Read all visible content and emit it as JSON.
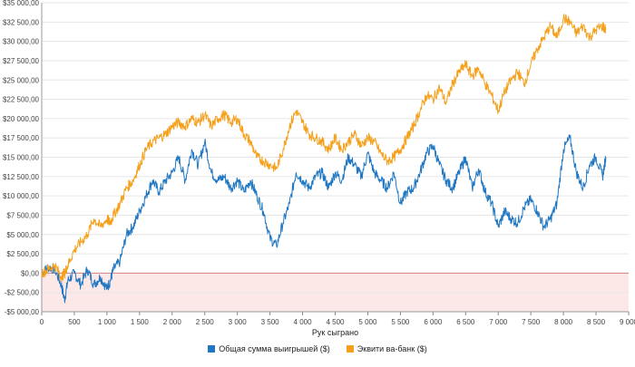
{
  "chart_data": {
    "type": "line",
    "xlabel": "Рук сыграно",
    "ylabel": "",
    "xlim": [
      0,
      9000
    ],
    "ylim": [
      -5000,
      35000
    ],
    "x_ticks": [
      0,
      500,
      1000,
      1500,
      2000,
      2500,
      3000,
      3500,
      4000,
      4500,
      5000,
      5500,
      6000,
      6500,
      7000,
      7500,
      8000,
      8500,
      9000
    ],
    "x_tick_labels": [
      "0",
      "500",
      "1 000",
      "1 500",
      "2 000",
      "2 500",
      "3 000",
      "3 500",
      "4 000",
      "4 500",
      "5 000",
      "5 500",
      "6 000",
      "6 500",
      "7 000",
      "7 500",
      "8 000",
      "8 500",
      "9 000"
    ],
    "y_ticks": [
      -5000,
      -2500,
      0,
      2500,
      5000,
      7500,
      10000,
      12500,
      15000,
      17500,
      20000,
      22500,
      25000,
      27500,
      30000,
      32500,
      35000
    ],
    "y_tick_labels": [
      "-$5 000,00",
      "-$2 500,00",
      "$0,00",
      "$2 500,00",
      "$5 000,00",
      "$7 500,00",
      "$10 000,00",
      "$12 500,00",
      "$15 000,00",
      "$17 500,00",
      "$20 000,00",
      "$22 500,00",
      "$25 000,00",
      "$27 500,00",
      "$30 000,00",
      "$32 500,00",
      "$35 000,00"
    ],
    "grid": true,
    "negative_region_color": "#fde8e8",
    "legend_position": "bottom",
    "x": [
      0,
      100,
      200,
      300,
      350,
      400,
      500,
      600,
      700,
      800,
      900,
      1000,
      1050,
      1100,
      1200,
      1300,
      1400,
      1500,
      1600,
      1700,
      1800,
      1900,
      2000,
      2100,
      2200,
      2300,
      2400,
      2500,
      2600,
      2700,
      2800,
      2900,
      3000,
      3100,
      3200,
      3300,
      3400,
      3500,
      3600,
      3700,
      3800,
      3900,
      4000,
      4100,
      4200,
      4300,
      4400,
      4500,
      4600,
      4700,
      4800,
      4900,
      5000,
      5100,
      5200,
      5300,
      5400,
      5500,
      5600,
      5700,
      5800,
      5900,
      6000,
      6100,
      6200,
      6300,
      6400,
      6500,
      6600,
      6700,
      6800,
      6900,
      7000,
      7100,
      7200,
      7300,
      7400,
      7500,
      7600,
      7700,
      7800,
      7900,
      8000,
      8100,
      8200,
      8300,
      8400,
      8500,
      8600,
      8650
    ],
    "series": [
      {
        "name": "Общая сумма выигрышей ($)",
        "color": "#1f77c4",
        "values": [
          0,
          800,
          500,
          -1500,
          -3500,
          -1000,
          0,
          -1500,
          500,
          -1500,
          -500,
          -2000,
          -1000,
          500,
          1500,
          5000,
          6000,
          8000,
          10000,
          12000,
          10500,
          12000,
          13000,
          15000,
          12000,
          16000,
          14000,
          17000,
          13000,
          12000,
          12500,
          11000,
          12000,
          10500,
          12000,
          10000,
          8000,
          4500,
          3500,
          6500,
          9000,
          13000,
          12000,
          11000,
          12500,
          13000,
          11000,
          13000,
          12000,
          15000,
          14000,
          12500,
          15500,
          13000,
          12000,
          11000,
          13000,
          9000,
          10500,
          11000,
          13000,
          15500,
          16500,
          14000,
          12000,
          11000,
          13000,
          15000,
          11000,
          13500,
          10500,
          9000,
          6000,
          8000,
          7000,
          6500,
          8500,
          9500,
          8000,
          6000,
          7000,
          9000,
          16000,
          17500,
          13000,
          11000,
          14000,
          15000,
          12500,
          15000
        ]
      },
      {
        "name": "Эквити ва-банк ($)",
        "color": "#f5a01a",
        "values": [
          0,
          500,
          1000,
          -500,
          0,
          1000,
          3000,
          4000,
          5000,
          7000,
          6000,
          7000,
          6500,
          7500,
          9000,
          11000,
          12000,
          14000,
          16000,
          17000,
          17500,
          18000,
          19000,
          19500,
          19000,
          20000,
          19500,
          20500,
          19000,
          20000,
          20500,
          19500,
          20000,
          18000,
          17000,
          15000,
          14500,
          14000,
          13500,
          16000,
          19000,
          21000,
          19500,
          18000,
          17500,
          17000,
          16000,
          17500,
          16000,
          17000,
          18000,
          16500,
          17500,
          17000,
          15500,
          14500,
          15000,
          16000,
          17500,
          19000,
          21000,
          23000,
          22500,
          24000,
          22000,
          24500,
          26000,
          27000,
          25500,
          26500,
          24500,
          23000,
          21000,
          23500,
          25000,
          26000,
          24500,
          27000,
          29000,
          30500,
          32000,
          30500,
          33000,
          32500,
          31000,
          32000,
          30500,
          31500,
          32000,
          31500
        ]
      }
    ]
  }
}
